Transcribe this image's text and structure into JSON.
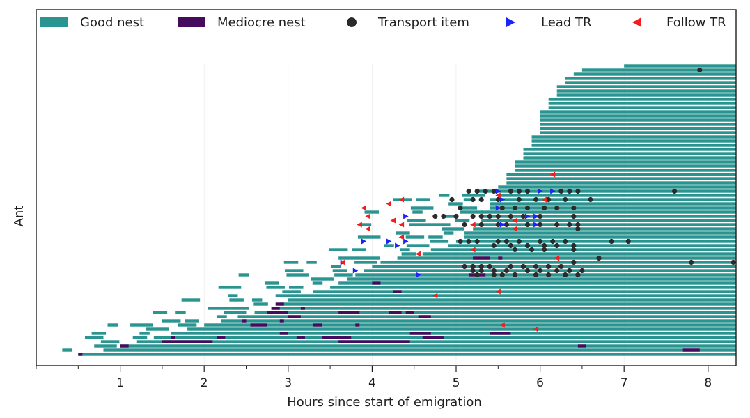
{
  "chart_data": {
    "type": "timeline",
    "xlabel": "Hours since start of emigration",
    "ylabel": "Ant",
    "xlim": [
      0,
      8.33
    ],
    "x_ticks": [
      1,
      2,
      3,
      4,
      5,
      6,
      7,
      8
    ],
    "x_minor_ticks": [
      0,
      0.5,
      1.5,
      2.5,
      3.5,
      4.5,
      5.5,
      6.5,
      7.5
    ],
    "legend_position": "top, above plot",
    "legend": [
      {
        "key": "good",
        "label": "Good nest",
        "marker": "rect",
        "color": "#2a9590"
      },
      {
        "key": "mediocre",
        "label": "Mediocre nest",
        "marker": "rect",
        "color": "#460b5e"
      },
      {
        "key": "transport",
        "label": "Transport item",
        "marker": "circle",
        "color": "#2b2b2b"
      },
      {
        "key": "lead",
        "label": "Lead TR",
        "marker": "tri-right",
        "color": "#1a25f5"
      },
      {
        "key": "follow",
        "label": "Follow TR",
        "marker": "tri-left",
        "color": "#f21e1e"
      }
    ],
    "entry_times": [
      7.0,
      6.5,
      6.4,
      6.3,
      6.3,
      6.2,
      6.2,
      6.2,
      6.1,
      6.1,
      6.1,
      6.0,
      6.0,
      6.0,
      6.0,
      6.0,
      6.0,
      5.9,
      5.9,
      5.9,
      5.8,
      5.8,
      5.8,
      5.7,
      5.7,
      5.7,
      5.6,
      5.6,
      5.6,
      5.5,
      5.5,
      5.5,
      5.4,
      5.4,
      5.4,
      5.3,
      5.3,
      5.3,
      5.2,
      5.2,
      5.1,
      5.1,
      5.0,
      4.9,
      4.7,
      4.6,
      4.3,
      4.1,
      4.0,
      3.9,
      3.8,
      3.7,
      3.6,
      3.5,
      3.3,
      3.1,
      3.0,
      2.9,
      2.8,
      2.6,
      2.4,
      2.2,
      2.0,
      1.8,
      1.6,
      1.4,
      1.2,
      1.0,
      0.8,
      0.5
    ],
    "mediocre_visits": [
      [
        46,
        5.2,
        5.4
      ],
      [
        46,
        5.5,
        5.55
      ],
      [
        50,
        5.15,
        5.35
      ],
      [
        52,
        4.0,
        4.1
      ],
      [
        54,
        4.25,
        4.35
      ],
      [
        57,
        2.85,
        2.95
      ],
      [
        58,
        2.8,
        2.9
      ],
      [
        58,
        3.15,
        3.2
      ],
      [
        59,
        2.75,
        3.0
      ],
      [
        59,
        3.6,
        3.85
      ],
      [
        59,
        4.2,
        4.35
      ],
      [
        59,
        4.4,
        4.5
      ],
      [
        60,
        3.0,
        3.15
      ],
      [
        60,
        4.55,
        4.7
      ],
      [
        61,
        2.45,
        2.5
      ],
      [
        61,
        2.9,
        2.95
      ],
      [
        62,
        2.55,
        2.75
      ],
      [
        62,
        3.3,
        3.4
      ],
      [
        62,
        3.8,
        3.85
      ],
      [
        64,
        2.9,
        3.0
      ],
      [
        64,
        4.45,
        4.7
      ],
      [
        64,
        5.4,
        5.65
      ],
      [
        65,
        1.6,
        1.65
      ],
      [
        65,
        2.15,
        2.25
      ],
      [
        65,
        3.1,
        3.2
      ],
      [
        65,
        3.4,
        3.75
      ],
      [
        65,
        4.6,
        4.85
      ],
      [
        66,
        1.5,
        2.1
      ],
      [
        66,
        3.6,
        4.45
      ],
      [
        67,
        1.0,
        1.1
      ],
      [
        67,
        6.45,
        6.55
      ],
      [
        68,
        7.7,
        7.9
      ],
      [
        69,
        0.5,
        0.55
      ]
    ],
    "transport_items": [
      [
        1,
        7.9
      ],
      [
        30,
        5.15
      ],
      [
        30,
        5.25
      ],
      [
        30,
        5.35
      ],
      [
        30,
        5.45
      ],
      [
        30,
        5.65
      ],
      [
        30,
        5.75
      ],
      [
        30,
        5.85
      ],
      [
        30,
        6.25
      ],
      [
        30,
        6.35
      ],
      [
        30,
        6.45
      ],
      [
        30,
        7.6
      ],
      [
        32,
        4.95
      ],
      [
        32,
        5.2
      ],
      [
        32,
        5.3
      ],
      [
        32,
        5.5
      ],
      [
        32,
        5.75
      ],
      [
        32,
        5.95
      ],
      [
        32,
        6.1
      ],
      [
        32,
        6.3
      ],
      [
        32,
        6.6
      ],
      [
        34,
        5.05
      ],
      [
        34,
        5.55
      ],
      [
        34,
        5.7
      ],
      [
        34,
        5.85
      ],
      [
        34,
        6.05
      ],
      [
        34,
        6.2
      ],
      [
        34,
        6.4
      ],
      [
        36,
        4.75
      ],
      [
        36,
        4.85
      ],
      [
        36,
        5.0
      ],
      [
        36,
        5.2
      ],
      [
        36,
        5.3
      ],
      [
        36,
        5.4
      ],
      [
        36,
        5.5
      ],
      [
        36,
        5.65
      ],
      [
        36,
        5.8
      ],
      [
        36,
        6.0
      ],
      [
        36,
        6.4
      ],
      [
        38,
        5.1
      ],
      [
        38,
        5.3
      ],
      [
        38,
        5.5
      ],
      [
        38,
        5.6
      ],
      [
        38,
        5.85
      ],
      [
        38,
        6.0
      ],
      [
        38,
        6.2
      ],
      [
        38,
        6.35
      ],
      [
        38,
        6.45
      ],
      [
        39,
        6.45
      ],
      [
        42,
        5.05
      ],
      [
        42,
        5.15
      ],
      [
        42,
        5.25
      ],
      [
        42,
        5.5
      ],
      [
        42,
        5.6
      ],
      [
        42,
        5.75
      ],
      [
        42,
        6.0
      ],
      [
        42,
        6.15
      ],
      [
        42,
        6.3
      ],
      [
        42,
        6.85
      ],
      [
        42,
        7.05
      ],
      [
        43,
        5.45
      ],
      [
        43,
        5.65
      ],
      [
        43,
        5.85
      ],
      [
        43,
        6.05
      ],
      [
        43,
        6.2
      ],
      [
        43,
        6.4
      ],
      [
        44,
        5.7
      ],
      [
        44,
        5.9
      ],
      [
        44,
        6.05
      ],
      [
        44,
        6.4
      ],
      [
        46,
        6.7
      ],
      [
        47,
        7.8
      ],
      [
        47,
        8.3
      ],
      [
        47,
        6.4
      ],
      [
        48,
        5.1
      ],
      [
        48,
        5.2
      ],
      [
        48,
        5.3
      ],
      [
        48,
        5.4
      ],
      [
        48,
        5.65
      ],
      [
        48,
        5.8
      ],
      [
        48,
        5.95
      ],
      [
        48,
        6.1
      ],
      [
        48,
        6.25
      ],
      [
        49,
        5.2
      ],
      [
        49,
        5.3
      ],
      [
        49,
        5.45
      ],
      [
        49,
        5.6
      ],
      [
        49,
        5.85
      ],
      [
        49,
        6.0
      ],
      [
        49,
        6.2
      ],
      [
        49,
        6.35
      ],
      [
        49,
        6.5
      ],
      [
        50,
        5.25
      ],
      [
        50,
        5.45
      ],
      [
        50,
        5.55
      ],
      [
        50,
        5.7
      ],
      [
        50,
        5.95
      ],
      [
        50,
        6.1
      ],
      [
        50,
        6.3
      ],
      [
        50,
        6.45
      ]
    ],
    "lead_tr": [
      [
        30,
        5.5
      ],
      [
        30,
        6.0
      ],
      [
        30,
        6.15
      ],
      [
        32,
        5.55
      ],
      [
        34,
        5.5
      ],
      [
        36,
        4.4
      ],
      [
        36,
        5.85
      ],
      [
        36,
        5.95
      ],
      [
        38,
        5.55
      ],
      [
        38,
        5.95
      ],
      [
        42,
        3.9
      ],
      [
        42,
        4.2
      ],
      [
        42,
        4.4
      ],
      [
        43,
        4.3
      ],
      [
        47,
        3.65
      ],
      [
        49,
        3.8
      ],
      [
        50,
        4.55
      ]
    ],
    "follow_tr": [
      [
        26,
        6.15
      ],
      [
        31,
        5.5
      ],
      [
        32,
        4.35
      ],
      [
        32,
        6.05
      ],
      [
        33,
        4.2
      ],
      [
        34,
        3.9
      ],
      [
        36,
        3.95
      ],
      [
        37,
        4.25
      ],
      [
        37,
        5.7
      ],
      [
        38,
        3.85
      ],
      [
        38,
        4.35
      ],
      [
        38,
        5.2
      ],
      [
        39,
        3.95
      ],
      [
        39,
        5.7
      ],
      [
        41,
        4.35
      ],
      [
        44,
        5.2
      ],
      [
        45,
        4.55
      ],
      [
        46,
        6.2
      ],
      [
        47,
        3.65
      ],
      [
        54,
        5.5
      ],
      [
        55,
        4.75
      ],
      [
        62,
        5.55
      ],
      [
        63,
        5.95
      ]
    ]
  }
}
